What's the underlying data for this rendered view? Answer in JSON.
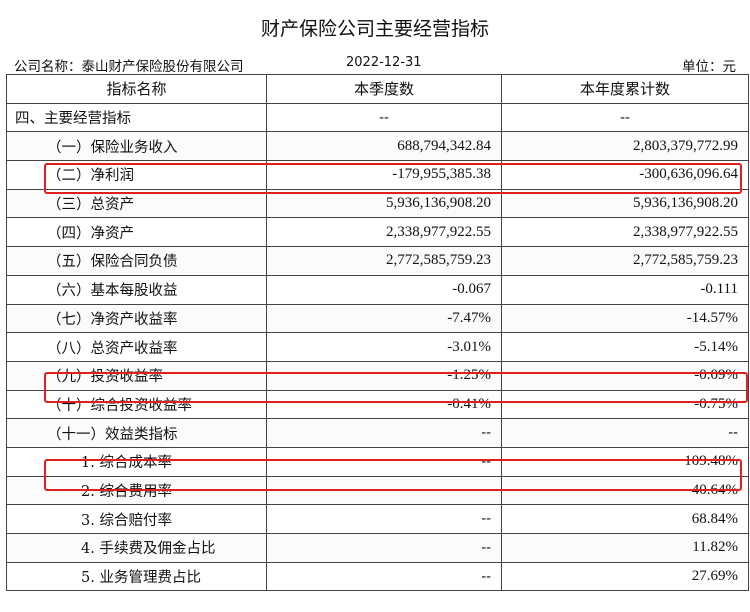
{
  "title": "财产保险公司主要经营指标",
  "meta": {
    "company": "公司名称：泰山财产保险股份有限公司",
    "date": "2022-12-31",
    "unit": "单位：元"
  },
  "header": {
    "col_name": "指标名称",
    "col_quarter": "本季度数",
    "col_ytd": "本年度累计数"
  },
  "rows": [
    {
      "name": "四、主要经营指标",
      "quarter": "--",
      "ytd": "--"
    },
    {
      "name": "（一）保险业务收入",
      "quarter": "688,794,342.84",
      "ytd": "2,803,379,772.99"
    },
    {
      "name": "（二）净利润",
      "quarter": "-179,955,385.38",
      "ytd": "-300,636,096.64"
    },
    {
      "name": "（三）总资产",
      "quarter": "5,936,136,908.20",
      "ytd": "5,936,136,908.20"
    },
    {
      "name": "（四）净资产",
      "quarter": "2,338,977,922.55",
      "ytd": "2,338,977,922.55"
    },
    {
      "name": "（五）保险合同负债",
      "quarter": "2,772,585,759.23",
      "ytd": "2,772,585,759.23"
    },
    {
      "name": "（六）基本每股收益",
      "quarter": "-0.067",
      "ytd": "-0.111"
    },
    {
      "name": "（七）净资产收益率",
      "quarter": "-7.47%",
      "ytd": "-14.57%"
    },
    {
      "name": "（八）总资产收益率",
      "quarter": "-3.01%",
      "ytd": "-5.14%"
    },
    {
      "name": "（九）投资收益率",
      "quarter": "-1.25%",
      "ytd": "-0.09%"
    },
    {
      "name": "（十）综合投资收益率",
      "quarter": "-0.41%",
      "ytd": "-0.75%"
    },
    {
      "name": "（十一）效益类指标",
      "quarter": "--",
      "ytd": "--"
    },
    {
      "name": "1. 综合成本率",
      "quarter": "--",
      "ytd": "109.48%"
    },
    {
      "name": "2. 综合费用率",
      "quarter": "--",
      "ytd": "40.64%"
    },
    {
      "name": "3. 综合赔付率",
      "quarter": "--",
      "ytd": "68.84%"
    },
    {
      "name": "4. 手续费及佣金占比",
      "quarter": "--",
      "ytd": "11.82%"
    },
    {
      "name": "5. 业务管理费占比",
      "quarter": "--",
      "ytd": "27.69%"
    }
  ],
  "highlight_color": "#e02020",
  "highlighted_rows": [
    "（二）净利润",
    "（九）投资收益率",
    "1. 综合成本率"
  ]
}
